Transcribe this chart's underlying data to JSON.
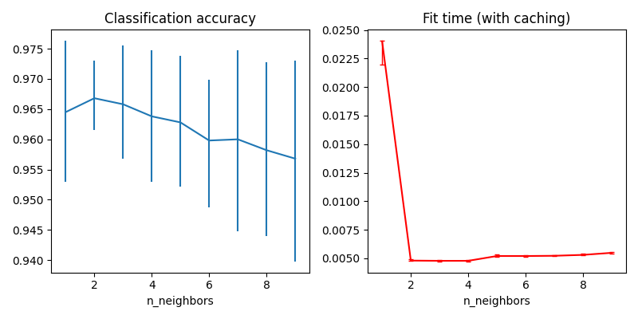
{
  "acc_x": [
    1,
    2,
    3,
    4,
    5,
    6,
    7,
    8,
    9
  ],
  "acc_mean": [
    0.9645,
    0.9668,
    0.9658,
    0.9638,
    0.9628,
    0.9598,
    0.96,
    0.9582,
    0.9568
  ],
  "acc_upper_err": [
    0.0118,
    0.0062,
    0.0097,
    0.011,
    0.011,
    0.01,
    0.0148,
    0.0146,
    0.0162
  ],
  "acc_lower_err": [
    0.0115,
    0.0053,
    0.009,
    0.0108,
    0.0106,
    0.011,
    0.0152,
    0.0142,
    0.017
  ],
  "acc_title": "Classification accuracy",
  "acc_xlabel": "n_neighbors",
  "acc_color": "#1f77b4",
  "fit_x": [
    1,
    2,
    3,
    4,
    5,
    6,
    7,
    8,
    9
  ],
  "fit_mean": [
    0.024,
    0.0048,
    0.00478,
    0.00478,
    0.0052,
    0.0052,
    0.00522,
    0.0053,
    0.00548
  ],
  "fit_upper_err": [
    5e-05,
    0.0001,
    0.0001,
    5e-05,
    0.00015,
    8e-05,
    8e-05,
    0.0001,
    0.0001
  ],
  "fit_lower_err": [
    0.002,
    5e-05,
    5e-05,
    5e-05,
    8e-05,
    5e-05,
    5e-05,
    5e-05,
    5e-05
  ],
  "fit_title": "Fit time (with caching)",
  "fit_xlabel": "n_neighbors",
  "fit_color": "#ff0000",
  "fig_width": 8.0,
  "fig_height": 4.0,
  "dpi": 100
}
